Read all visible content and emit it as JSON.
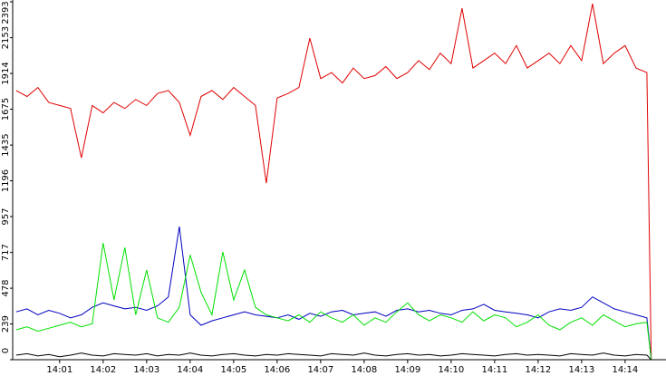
{
  "chart_data": {
    "type": "line",
    "x": [
      840.0,
      840.25,
      840.5,
      840.75,
      841.0,
      841.25,
      841.5,
      841.75,
      842.0,
      842.25,
      842.5,
      842.75,
      843.0,
      843.25,
      843.5,
      843.75,
      844.0,
      844.25,
      844.5,
      844.75,
      845.0,
      845.25,
      845.5,
      845.75,
      846.0,
      846.25,
      846.5,
      846.75,
      847.0,
      847.25,
      847.5,
      847.75,
      848.0,
      848.25,
      848.5,
      848.75,
      849.0,
      849.25,
      849.5,
      849.75,
      850.0,
      850.25,
      850.5,
      850.75,
      851.0,
      851.25,
      851.5,
      851.75,
      852.0,
      852.25,
      852.5,
      852.75,
      853.0,
      853.25,
      853.5,
      853.75,
      854.0,
      854.25,
      854.5,
      854.6
    ],
    "series": [
      {
        "color": "#e00000",
        "values": [
          1800,
          1760,
          1820,
          1720,
          1700,
          1680,
          1350,
          1700,
          1650,
          1720,
          1680,
          1740,
          1700,
          1780,
          1800,
          1720,
          1500,
          1760,
          1800,
          1740,
          1820,
          1760,
          1700,
          1180,
          1750,
          1780,
          1820,
          2150,
          1880,
          1920,
          1850,
          1950,
          1880,
          1900,
          1960,
          1880,
          1920,
          2000,
          1940,
          2050,
          1980,
          2350,
          1950,
          2000,
          2050,
          1980,
          2100,
          1950,
          2000,
          2050,
          1980,
          2100,
          2000,
          2380,
          1980,
          2050,
          2100,
          1950,
          1920,
          0
        ]
      },
      {
        "color": "#0000c0",
        "values": [
          320,
          340,
          300,
          330,
          310,
          280,
          300,
          350,
          380,
          360,
          340,
          350,
          330,
          360,
          420,
          890,
          300,
          230,
          260,
          280,
          300,
          320,
          300,
          290,
          280,
          300,
          270,
          310,
          290,
          320,
          330,
          300,
          310,
          320,
          290,
          330,
          340,
          320,
          330,
          310,
          300,
          330,
          340,
          370,
          330,
          320,
          310,
          300,
          280,
          320,
          340,
          330,
          350,
          420,
          380,
          340,
          320,
          300,
          280,
          0
        ]
      },
      {
        "color": "#00e000",
        "values": [
          200,
          220,
          190,
          210,
          230,
          250,
          220,
          240,
          780,
          400,
          750,
          300,
          600,
          280,
          250,
          350,
          700,
          450,
          300,
          720,
          400,
          600,
          350,
          300,
          280,
          260,
          300,
          250,
          320,
          280,
          250,
          300,
          230,
          280,
          250,
          320,
          380,
          300,
          260,
          300,
          280,
          250,
          320,
          260,
          300,
          280,
          220,
          250,
          300,
          230,
          200,
          250,
          280,
          230,
          300,
          260,
          220,
          240,
          250,
          0
        ]
      },
      {
        "color": "#000000",
        "values": [
          30,
          40,
          25,
          35,
          20,
          30,
          45,
          30,
          25,
          40,
          35,
          30,
          40,
          25,
          35,
          30,
          45,
          30,
          25,
          35,
          40,
          30,
          25,
          35,
          30,
          40,
          35,
          30,
          25,
          40,
          35,
          30,
          45,
          30,
          25,
          35,
          40,
          30,
          35,
          25,
          30,
          40,
          35,
          30,
          25,
          35,
          40,
          30,
          35,
          30,
          25,
          40,
          35,
          30,
          45,
          30,
          25,
          35,
          30,
          0
        ]
      }
    ],
    "xlim": [
      839.92,
      854.94
    ],
    "xticks": [
      {
        "value": 841,
        "label": "14:01"
      },
      {
        "value": 842,
        "label": "14:02"
      },
      {
        "value": 843,
        "label": "14:03"
      },
      {
        "value": 844,
        "label": "14:04"
      },
      {
        "value": 845,
        "label": "14:05"
      },
      {
        "value": 846,
        "label": "14:06"
      },
      {
        "value": 847,
        "label": "14:07"
      },
      {
        "value": 848,
        "label": "14:08"
      },
      {
        "value": 849,
        "label": "14:09"
      },
      {
        "value": 850,
        "label": "14:10"
      },
      {
        "value": 851,
        "label": "14:11"
      },
      {
        "value": 852,
        "label": "14:12"
      },
      {
        "value": 853,
        "label": "14:13"
      },
      {
        "value": 854,
        "label": "14:14"
      }
    ],
    "ylim": [
      0,
      2405
    ],
    "yticks": [
      0,
      239,
      478,
      717,
      957,
      1196,
      1435,
      1675,
      1914,
      2153,
      2393
    ]
  }
}
